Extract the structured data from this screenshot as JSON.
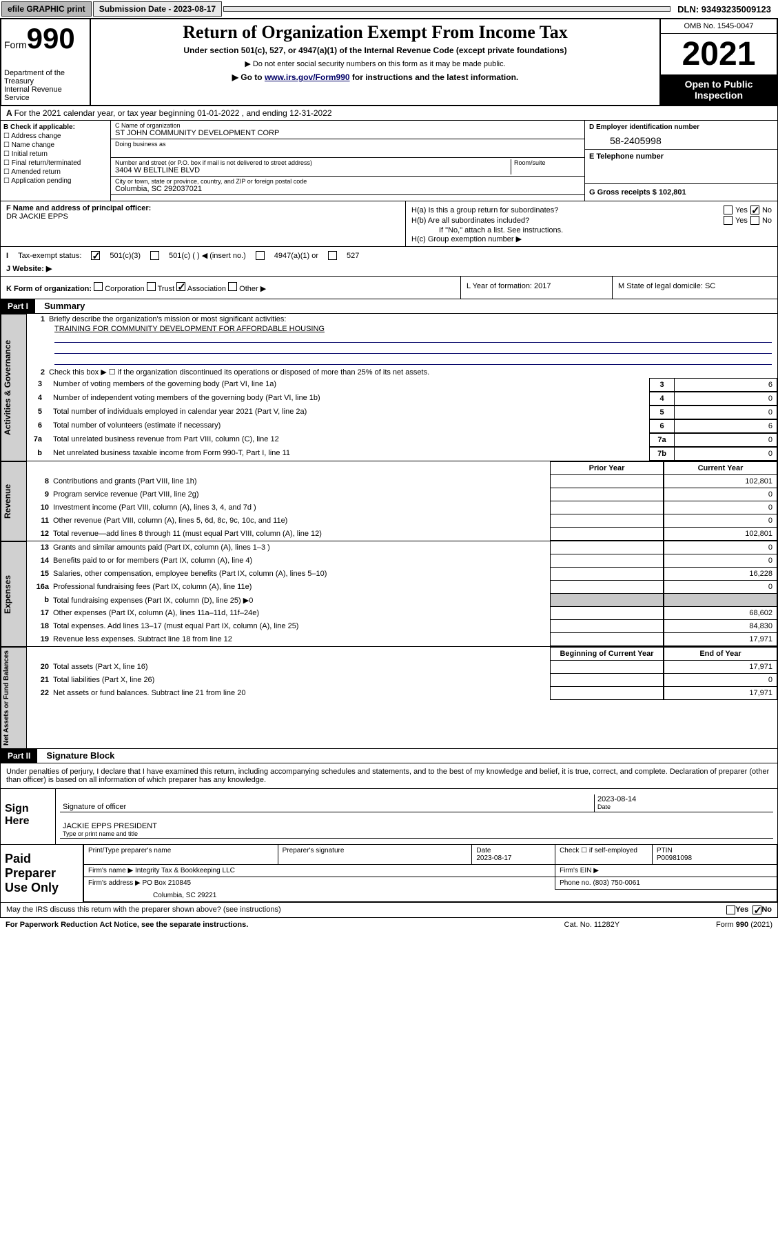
{
  "topbar": {
    "efile": "efile GRAPHIC print",
    "sub_label": "Submission Date - 2023-08-17",
    "dln": "DLN: 93493235009123"
  },
  "header": {
    "form_prefix": "Form",
    "form_num": "990",
    "dept": "Department of the Treasury\nInternal Revenue Service",
    "title": "Return of Organization Exempt From Income Tax",
    "subtitle": "Under section 501(c), 527, or 4947(a)(1) of the Internal Revenue Code (except private foundations)",
    "notice1": "▶ Do not enter social security numbers on this form as it may be made public.",
    "notice2": "▶ Go to www.irs.gov/Form990 for instructions and the latest information.",
    "omb": "OMB No. 1545-0047",
    "year": "2021",
    "inspect": "Open to Public Inspection"
  },
  "section_a": "For the 2021 calendar year, or tax year beginning 01-01-2022  , and ending 12-31-2022",
  "box_b": {
    "label": "B Check if applicable:",
    "items": [
      "Address change",
      "Name change",
      "Initial return",
      "Final return/terminated",
      "Amended return",
      "Application pending"
    ]
  },
  "org": {
    "name_lbl": "C Name of organization",
    "name": "ST JOHN COMMUNITY DEVELOPMENT CORP",
    "dba_lbl": "Doing business as",
    "street_lbl": "Number and street (or P.O. box if mail is not delivered to street address)",
    "street": "3404 W BELTLINE BLVD",
    "room_lbl": "Room/suite",
    "city_lbl": "City or town, state or province, country, and ZIP or foreign postal code",
    "city": "Columbia, SC  292037021",
    "ein_lbl": "D Employer identification number",
    "ein": "58-2405998",
    "tel_lbl": "E Telephone number",
    "gross_lbl": "G Gross receipts $",
    "gross": "102,801"
  },
  "row_f": {
    "f_lbl": "F  Name and address of principal officer:",
    "f_name": "DR JACKIE EPPS",
    "ha": "H(a)  Is this a group return for subordinates?",
    "hb": "H(b)  Are all subordinates included?",
    "hb_note": "If \"No,\" attach a list. See instructions.",
    "hc": "H(c)  Group exemption number ▶"
  },
  "row_i": {
    "i_lbl": "Tax-exempt status:",
    "opts": [
      "501(c)(3)",
      "501(c) (  ) ◀ (insert no.)",
      "4947(a)(1) or",
      "527"
    ],
    "j_lbl": "Website: ▶"
  },
  "row_k": {
    "k_lbl": "K Form of organization:",
    "opts": [
      "Corporation",
      "Trust",
      "Association",
      "Other ▶"
    ],
    "l": "L Year of formation: 2017",
    "m": "M State of legal domicile: SC"
  },
  "part1": {
    "hdr": "Part I",
    "title": "Summary",
    "q1": "Briefly describe the organization's mission or most significant activities:",
    "q1_ans": "TRAINING FOR COMMUNITY DEVELOPMENT FOR AFFORDABLE HOUSING",
    "q2": "Check this box ▶ ☐ if the organization discontinued its operations or disposed of more than 25% of its net assets.",
    "rows_gov": [
      {
        "n": "3",
        "t": "Number of voting members of the governing body (Part VI, line 1a)",
        "v": "6"
      },
      {
        "n": "4",
        "t": "Number of independent voting members of the governing body (Part VI, line 1b)",
        "v": "0"
      },
      {
        "n": "5",
        "t": "Total number of individuals employed in calendar year 2021 (Part V, line 2a)",
        "v": "0"
      },
      {
        "n": "6",
        "t": "Total number of volunteers (estimate if necessary)",
        "v": "6"
      },
      {
        "n": "7a",
        "t": "Total unrelated business revenue from Part VIII, column (C), line 12",
        "v": "0"
      },
      {
        "n": "b",
        "t": "Net unrelated business taxable income from Form 990-T, Part I, line 11",
        "bn": "7b",
        "v": "0"
      }
    ],
    "col_hdrs": {
      "prior": "Prior Year",
      "curr": "Current Year"
    },
    "rev": [
      {
        "n": "8",
        "t": "Contributions and grants (Part VIII, line 1h)",
        "c": "102,801"
      },
      {
        "n": "9",
        "t": "Program service revenue (Part VIII, line 2g)",
        "c": "0"
      },
      {
        "n": "10",
        "t": "Investment income (Part VIII, column (A), lines 3, 4, and 7d )",
        "c": "0"
      },
      {
        "n": "11",
        "t": "Other revenue (Part VIII, column (A), lines 5, 6d, 8c, 9c, 10c, and 11e)",
        "c": "0"
      },
      {
        "n": "12",
        "t": "Total revenue—add lines 8 through 11 (must equal Part VIII, column (A), line 12)",
        "c": "102,801"
      }
    ],
    "exp": [
      {
        "n": "13",
        "t": "Grants and similar amounts paid (Part IX, column (A), lines 1–3 )",
        "c": "0"
      },
      {
        "n": "14",
        "t": "Benefits paid to or for members (Part IX, column (A), line 4)",
        "c": "0"
      },
      {
        "n": "15",
        "t": "Salaries, other compensation, employee benefits (Part IX, column (A), lines 5–10)",
        "c": "16,228"
      },
      {
        "n": "16a",
        "t": "Professional fundraising fees (Part IX, column (A), line 11e)",
        "c": "0"
      },
      {
        "n": "b",
        "t": "Total fundraising expenses (Part IX, column (D), line 25) ▶0",
        "c": "",
        "shade": true
      },
      {
        "n": "17",
        "t": "Other expenses (Part IX, column (A), lines 11a–11d, 11f–24e)",
        "c": "68,602"
      },
      {
        "n": "18",
        "t": "Total expenses. Add lines 13–17 (must equal Part IX, column (A), line 25)",
        "c": "84,830"
      },
      {
        "n": "19",
        "t": "Revenue less expenses. Subtract line 18 from line 12",
        "c": "17,971"
      }
    ],
    "col_hdrs2": {
      "prior": "Beginning of Current Year",
      "curr": "End of Year"
    },
    "net": [
      {
        "n": "20",
        "t": "Total assets (Part X, line 16)",
        "c": "17,971"
      },
      {
        "n": "21",
        "t": "Total liabilities (Part X, line 26)",
        "c": "0"
      },
      {
        "n": "22",
        "t": "Net assets or fund balances. Subtract line 21 from line 20",
        "c": "17,971"
      }
    ],
    "vlabels": [
      "Activities & Governance",
      "Revenue",
      "Expenses",
      "Net Assets or Fund Balances"
    ]
  },
  "part2": {
    "hdr": "Part II",
    "title": "Signature Block",
    "decl": "Under penalties of perjury, I declare that I have examined this return, including accompanying schedules and statements, and to the best of my knowledge and belief, it is true, correct, and complete. Declaration of preparer (other than officer) is based on all information of which preparer has any knowledge.",
    "sign_here": "Sign Here",
    "sig_officer": "Signature of officer",
    "sig_date": "2023-08-14",
    "date_lbl": "Date",
    "officer_name": "JACKIE EPPS PRESIDENT",
    "type_name": "Type or print name and title",
    "paid": "Paid Preparer Use Only",
    "prep_hdrs": [
      "Print/Type preparer's name",
      "Preparer's signature",
      "Date",
      "Check ☐ if self-employed",
      "PTIN"
    ],
    "prep_date": "2023-08-17",
    "ptin": "P00981098",
    "firm_name_lbl": "Firm's name    ▶",
    "firm_name": "Integrity Tax & Bookkeeping LLC",
    "firm_ein_lbl": "Firm's EIN ▶",
    "firm_addr_lbl": "Firm's address ▶",
    "firm_addr": "PO Box 210845",
    "firm_city": "Columbia, SC  29221",
    "phone_lbl": "Phone no.",
    "phone": "(803) 750-0061"
  },
  "footer": {
    "discuss": "May the IRS discuss this return with the preparer shown above? (see instructions)",
    "paperwork": "For Paperwork Reduction Act Notice, see the separate instructions.",
    "cat": "Cat. No. 11282Y",
    "form": "Form 990 (2021)"
  }
}
